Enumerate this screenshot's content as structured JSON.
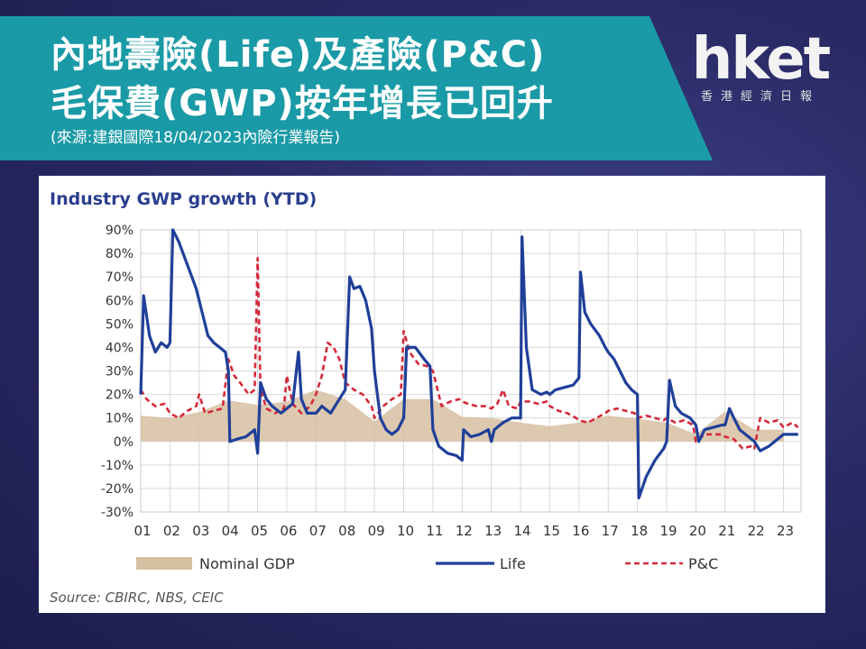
{
  "header": {
    "title_line1": "內地壽險(Life)及產險(P&C)",
    "title_line2": "毛保費(GWP)按年增長已回升",
    "source_note": "(來源:建銀國際18/04/2023內險行業報告)"
  },
  "logo": {
    "main": "hket",
    "sub": "香港經濟日報"
  },
  "chart_data": {
    "type": "line",
    "title": "Industry GWP growth (YTD)",
    "source": "Source: CBIRC, NBS, CEIC",
    "x_labels": [
      "01",
      "02",
      "03",
      "04",
      "05",
      "06",
      "07",
      "08",
      "09",
      "10",
      "11",
      "12",
      "13",
      "14",
      "15",
      "16",
      "17",
      "18",
      "19",
      "20",
      "21",
      "22",
      "23"
    ],
    "xlim": [
      2001.0,
      2023.6
    ],
    "y_ticks": [
      "90%",
      "80%",
      "70%",
      "60%",
      "50%",
      "40%",
      "30%",
      "20%",
      "10%",
      "0%",
      "-10%",
      "-20%",
      "-30%"
    ],
    "ylim": [
      -30,
      90
    ],
    "grid": true,
    "legend_position": "bottom",
    "colors": {
      "gdp": "#d6c0a2",
      "life": "#1f3f99",
      "pc": "#d42a3a"
    },
    "series": [
      {
        "name": "Nominal GDP",
        "style": "area",
        "points": [
          [
            2001.0,
            11
          ],
          [
            2002.0,
            10
          ],
          [
            2003.0,
            12.5
          ],
          [
            2004.0,
            17.5
          ],
          [
            2005.0,
            15.5
          ],
          [
            2006.0,
            17
          ],
          [
            2007.0,
            22
          ],
          [
            2008.0,
            18
          ],
          [
            2009.0,
            8.5
          ],
          [
            2010.0,
            18
          ],
          [
            2011.0,
            18
          ],
          [
            2012.0,
            10.5
          ],
          [
            2013.0,
            10
          ],
          [
            2014.0,
            8
          ],
          [
            2015.0,
            6.5
          ],
          [
            2016.0,
            8
          ],
          [
            2017.0,
            11
          ],
          [
            2018.0,
            9.7
          ],
          [
            2019.0,
            8
          ],
          [
            2020.0,
            3
          ],
          [
            2021.0,
            12.8
          ],
          [
            2022.0,
            5
          ],
          [
            2023.0,
            5
          ]
        ]
      },
      {
        "name": "Life",
        "style": "solid",
        "points": [
          [
            2001.0,
            20
          ],
          [
            2001.1,
            62
          ],
          [
            2001.3,
            45
          ],
          [
            2001.5,
            38
          ],
          [
            2001.7,
            42
          ],
          [
            2001.9,
            40
          ],
          [
            2002.0,
            42
          ],
          [
            2002.1,
            90
          ],
          [
            2002.3,
            85
          ],
          [
            2002.6,
            75
          ],
          [
            2002.9,
            65
          ],
          [
            2003.1,
            55
          ],
          [
            2003.3,
            45
          ],
          [
            2003.5,
            42
          ],
          [
            2003.7,
            40
          ],
          [
            2003.9,
            38
          ],
          [
            2004.0,
            30
          ],
          [
            2004.05,
            0
          ],
          [
            2004.3,
            1
          ],
          [
            2004.6,
            2
          ],
          [
            2004.9,
            5
          ],
          [
            2005.0,
            -5
          ],
          [
            2005.1,
            25
          ],
          [
            2005.3,
            18
          ],
          [
            2005.5,
            15
          ],
          [
            2005.8,
            12
          ],
          [
            2006.0,
            14
          ],
          [
            2006.2,
            16
          ],
          [
            2006.4,
            38
          ],
          [
            2006.5,
            18
          ],
          [
            2006.7,
            12
          ],
          [
            2007.0,
            12
          ],
          [
            2007.2,
            15
          ],
          [
            2007.5,
            12
          ],
          [
            2007.8,
            18
          ],
          [
            2008.0,
            22
          ],
          [
            2008.15,
            70
          ],
          [
            2008.3,
            65
          ],
          [
            2008.5,
            66
          ],
          [
            2008.7,
            60
          ],
          [
            2008.9,
            48
          ],
          [
            2009.0,
            30
          ],
          [
            2009.2,
            10
          ],
          [
            2009.4,
            5
          ],
          [
            2009.6,
            3
          ],
          [
            2009.8,
            5
          ],
          [
            2010.0,
            10
          ],
          [
            2010.1,
            40
          ],
          [
            2010.4,
            40
          ],
          [
            2010.7,
            35
          ],
          [
            2010.9,
            32
          ],
          [
            2011.0,
            5
          ],
          [
            2011.2,
            -2
          ],
          [
            2011.5,
            -5
          ],
          [
            2011.8,
            -6
          ],
          [
            2012.0,
            -8
          ],
          [
            2012.05,
            5
          ],
          [
            2012.3,
            2
          ],
          [
            2012.6,
            3
          ],
          [
            2012.9,
            5
          ],
          [
            2013.0,
            0
          ],
          [
            2013.1,
            5
          ],
          [
            2013.4,
            8
          ],
          [
            2013.7,
            10
          ],
          [
            2013.9,
            10
          ],
          [
            2014.0,
            10
          ],
          [
            2014.05,
            87
          ],
          [
            2014.2,
            40
          ],
          [
            2014.4,
            22
          ],
          [
            2014.7,
            20
          ],
          [
            2014.9,
            21
          ],
          [
            2015.0,
            20
          ],
          [
            2015.2,
            22
          ],
          [
            2015.5,
            23
          ],
          [
            2015.8,
            24
          ],
          [
            2016.0,
            27
          ],
          [
            2016.05,
            72
          ],
          [
            2016.2,
            55
          ],
          [
            2016.4,
            50
          ],
          [
            2016.7,
            45
          ],
          [
            2016.9,
            40
          ],
          [
            2017.0,
            38
          ],
          [
            2017.2,
            35
          ],
          [
            2017.4,
            30
          ],
          [
            2017.6,
            25
          ],
          [
            2017.8,
            22
          ],
          [
            2018.0,
            20
          ],
          [
            2018.05,
            -24
          ],
          [
            2018.3,
            -15
          ],
          [
            2018.6,
            -8
          ],
          [
            2018.9,
            -3
          ],
          [
            2019.0,
            0
          ],
          [
            2019.1,
            26
          ],
          [
            2019.3,
            15
          ],
          [
            2019.5,
            12
          ],
          [
            2019.8,
            10
          ],
          [
            2020.0,
            7
          ],
          [
            2020.1,
            0
          ],
          [
            2020.3,
            5
          ],
          [
            2020.6,
            6
          ],
          [
            2020.9,
            7
          ],
          [
            2021.0,
            7
          ],
          [
            2021.15,
            14
          ],
          [
            2021.3,
            10
          ],
          [
            2021.5,
            5
          ],
          [
            2021.8,
            2
          ],
          [
            2022.0,
            0
          ],
          [
            2022.2,
            -4
          ],
          [
            2022.5,
            -2
          ],
          [
            2022.8,
            1
          ],
          [
            2023.0,
            3
          ],
          [
            2023.3,
            3
          ],
          [
            2023.5,
            3
          ]
        ]
      },
      {
        "name": "P&C",
        "style": "dashed",
        "points": [
          [
            2001.0,
            22
          ],
          [
            2001.2,
            18
          ],
          [
            2001.5,
            15
          ],
          [
            2001.8,
            16
          ],
          [
            2002.0,
            12
          ],
          [
            2002.3,
            10
          ],
          [
            2002.6,
            13
          ],
          [
            2002.9,
            15
          ],
          [
            2003.0,
            20
          ],
          [
            2003.2,
            12
          ],
          [
            2003.5,
            13
          ],
          [
            2003.8,
            14
          ],
          [
            2004.0,
            35
          ],
          [
            2004.2,
            28
          ],
          [
            2004.4,
            25
          ],
          [
            2004.7,
            20
          ],
          [
            2004.9,
            22
          ],
          [
            2005.0,
            78
          ],
          [
            2005.1,
            22
          ],
          [
            2005.3,
            14
          ],
          [
            2005.6,
            12
          ],
          [
            2005.9,
            14
          ],
          [
            2006.0,
            28
          ],
          [
            2006.2,
            16
          ],
          [
            2006.5,
            12
          ],
          [
            2006.8,
            15
          ],
          [
            2007.0,
            20
          ],
          [
            2007.2,
            28
          ],
          [
            2007.4,
            42
          ],
          [
            2007.6,
            40
          ],
          [
            2007.8,
            35
          ],
          [
            2008.0,
            25
          ],
          [
            2008.3,
            22
          ],
          [
            2008.6,
            20
          ],
          [
            2008.9,
            15
          ],
          [
            2009.0,
            10
          ],
          [
            2009.3,
            15
          ],
          [
            2009.6,
            18
          ],
          [
            2009.9,
            20
          ],
          [
            2010.0,
            47
          ],
          [
            2010.2,
            38
          ],
          [
            2010.5,
            33
          ],
          [
            2010.8,
            32
          ],
          [
            2011.0,
            30
          ],
          [
            2011.3,
            15
          ],
          [
            2011.6,
            17
          ],
          [
            2011.9,
            18
          ],
          [
            2012.0,
            17
          ],
          [
            2012.2,
            16
          ],
          [
            2012.5,
            15
          ],
          [
            2012.8,
            15
          ],
          [
            2013.0,
            14
          ],
          [
            2013.2,
            16
          ],
          [
            2013.4,
            22
          ],
          [
            2013.6,
            15
          ],
          [
            2013.9,
            14
          ],
          [
            2014.0,
            17
          ],
          [
            2014.3,
            17
          ],
          [
            2014.6,
            16
          ],
          [
            2014.9,
            17
          ],
          [
            2015.0,
            15
          ],
          [
            2015.3,
            13
          ],
          [
            2015.6,
            12
          ],
          [
            2015.9,
            10
          ],
          [
            2016.0,
            9
          ],
          [
            2016.3,
            8
          ],
          [
            2016.6,
            10
          ],
          [
            2016.9,
            12
          ],
          [
            2017.0,
            13
          ],
          [
            2017.3,
            14
          ],
          [
            2017.6,
            13
          ],
          [
            2017.9,
            12
          ],
          [
            2018.0,
            10
          ],
          [
            2018.3,
            11
          ],
          [
            2018.6,
            10
          ],
          [
            2018.9,
            9
          ],
          [
            2019.0,
            10
          ],
          [
            2019.3,
            8
          ],
          [
            2019.6,
            9
          ],
          [
            2019.9,
            7
          ],
          [
            2020.0,
            0
          ],
          [
            2020.3,
            3
          ],
          [
            2020.6,
            3
          ],
          [
            2020.9,
            3
          ],
          [
            2021.0,
            2
          ],
          [
            2021.3,
            1
          ],
          [
            2021.6,
            -3
          ],
          [
            2021.9,
            -2
          ],
          [
            2022.0,
            -3
          ],
          [
            2022.2,
            10
          ],
          [
            2022.5,
            8
          ],
          [
            2022.8,
            9
          ],
          [
            2023.0,
            6
          ],
          [
            2023.3,
            8
          ],
          [
            2023.5,
            6
          ]
        ]
      }
    ]
  }
}
